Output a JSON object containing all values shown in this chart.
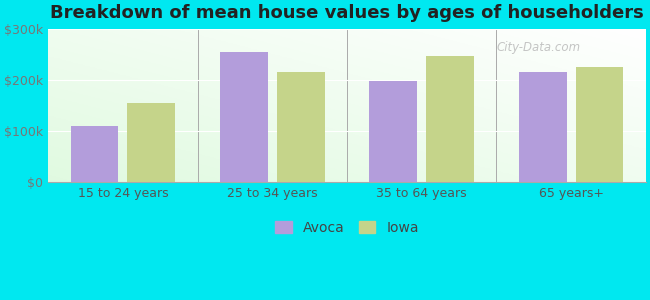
{
  "title": "Breakdown of mean house values by ages of householders",
  "categories": [
    "15 to 24 years",
    "25 to 34 years",
    "35 to 64 years",
    "65 years+"
  ],
  "avoca_values": [
    110000,
    255000,
    198000,
    215000
  ],
  "iowa_values": [
    155000,
    215000,
    248000,
    225000
  ],
  "avoca_color": "#b39ddb",
  "iowa_color": "#c5d48a",
  "background_outer": "#00e8f0",
  "ylim": [
    0,
    300000
  ],
  "yticks": [
    0,
    100000,
    200000,
    300000
  ],
  "ytick_labels": [
    "$0",
    "$100k",
    "$200k",
    "$300k"
  ],
  "bar_width": 0.32,
  "legend_labels": [
    "Avoca",
    "Iowa"
  ],
  "title_fontsize": 13,
  "tick_fontsize": 9,
  "legend_fontsize": 10,
  "watermark": "City-Data.com",
  "watermark_color": "#bbbbbb",
  "tick_color": "#777777",
  "xtick_color": "#555555"
}
